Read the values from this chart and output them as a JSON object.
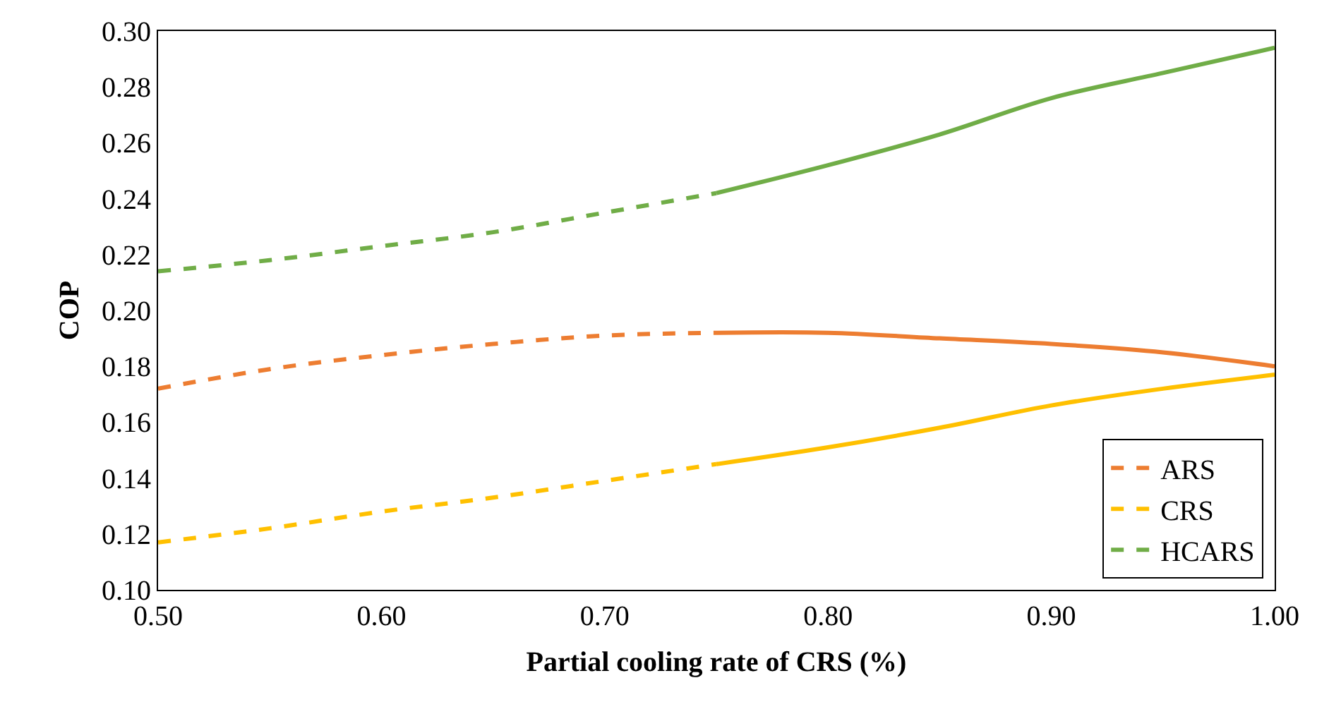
{
  "chart_data": {
    "type": "line",
    "xlabel": "Partial cooling rate of CRS (%)",
    "ylabel": "COP",
    "xlim": [
      0.5,
      1.0
    ],
    "xticks": [
      {
        "value": 0.5,
        "label": "0.50"
      },
      {
        "value": 0.6,
        "label": "0.60"
      },
      {
        "value": 0.7,
        "label": "0.70"
      },
      {
        "value": 0.8,
        "label": "0.80"
      },
      {
        "value": 0.9,
        "label": "0.90"
      },
      {
        "value": 1.0,
        "label": "1.00"
      }
    ],
    "ylim": [
      0.1,
      0.3
    ],
    "yticks": [
      {
        "value": 0.1,
        "label": "0.10"
      },
      {
        "value": 0.12,
        "label": "0.12"
      },
      {
        "value": 0.14,
        "label": "0.14"
      },
      {
        "value": 0.16,
        "label": "0.16"
      },
      {
        "value": 0.18,
        "label": "0.18"
      },
      {
        "value": 0.2,
        "label": "0.20"
      },
      {
        "value": 0.22,
        "label": "0.22"
      },
      {
        "value": 0.24,
        "label": "0.24"
      },
      {
        "value": 0.26,
        "label": "0.26"
      },
      {
        "value": 0.28,
        "label": "0.28"
      },
      {
        "value": 0.3,
        "label": "0.30"
      }
    ],
    "grid": false,
    "legend": "bottom right",
    "series": [
      {
        "name": "ARS",
        "color": "#ed7d31",
        "line_style": "dashed",
        "x": [
          0.5,
          0.55,
          0.6,
          0.65,
          0.7,
          0.75
        ],
        "values": [
          0.172,
          0.179,
          0.184,
          0.188,
          0.191,
          0.192
        ]
      },
      {
        "color": "#ed7d31",
        "line_style": "solid",
        "x": [
          0.75,
          0.8,
          0.85,
          0.9,
          0.95,
          1.0
        ],
        "values": [
          0.192,
          0.192,
          0.19,
          0.188,
          0.185,
          0.18
        ]
      },
      {
        "name": "CRS",
        "color": "#ffc000",
        "line_style": "dashed",
        "x": [
          0.5,
          0.55,
          0.6,
          0.65,
          0.7,
          0.75
        ],
        "values": [
          0.117,
          0.122,
          0.128,
          0.133,
          0.139,
          0.145
        ]
      },
      {
        "color": "#ffc000",
        "line_style": "solid",
        "x": [
          0.75,
          0.8,
          0.85,
          0.9,
          0.95,
          1.0
        ],
        "values": [
          0.145,
          0.151,
          0.158,
          0.166,
          0.172,
          0.177
        ]
      },
      {
        "name": "HCARS",
        "color": "#70ad47",
        "line_style": "dashed",
        "x": [
          0.5,
          0.55,
          0.6,
          0.65,
          0.7,
          0.75
        ],
        "values": [
          0.214,
          0.218,
          0.223,
          0.228,
          0.235,
          0.242
        ]
      },
      {
        "color": "#70ad47",
        "line_style": "solid",
        "x": [
          0.75,
          0.8,
          0.85,
          0.9,
          0.95,
          1.0
        ],
        "values": [
          0.242,
          0.252,
          0.263,
          0.276,
          0.285,
          0.294
        ]
      }
    ]
  }
}
